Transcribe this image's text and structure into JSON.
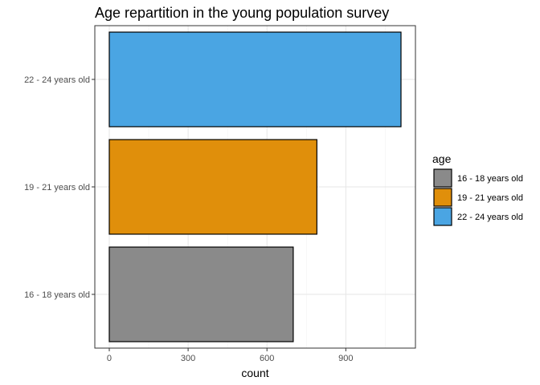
{
  "chart_data": {
    "type": "bar",
    "orientation": "horizontal",
    "title": "Age repartition in the young population survey",
    "xlabel": "count",
    "ylabel": "",
    "categories": [
      "16 - 18 years old",
      "19 - 21 years old",
      "22 - 24 years old"
    ],
    "values": [
      700,
      790,
      1110
    ],
    "colors": [
      "#8a8a8a",
      "#e08f0b",
      "#4aa5e3"
    ],
    "xlim": [
      -55,
      1165
    ],
    "xticks": [
      0,
      300,
      600,
      900
    ],
    "xtick_labels": [
      "0",
      "300",
      "600",
      "900"
    ],
    "grid": true,
    "legend": {
      "title": "age",
      "position": "right",
      "entries": [
        "16 - 18 years old",
        "19 - 21 years old",
        "22 - 24 years old"
      ]
    }
  }
}
